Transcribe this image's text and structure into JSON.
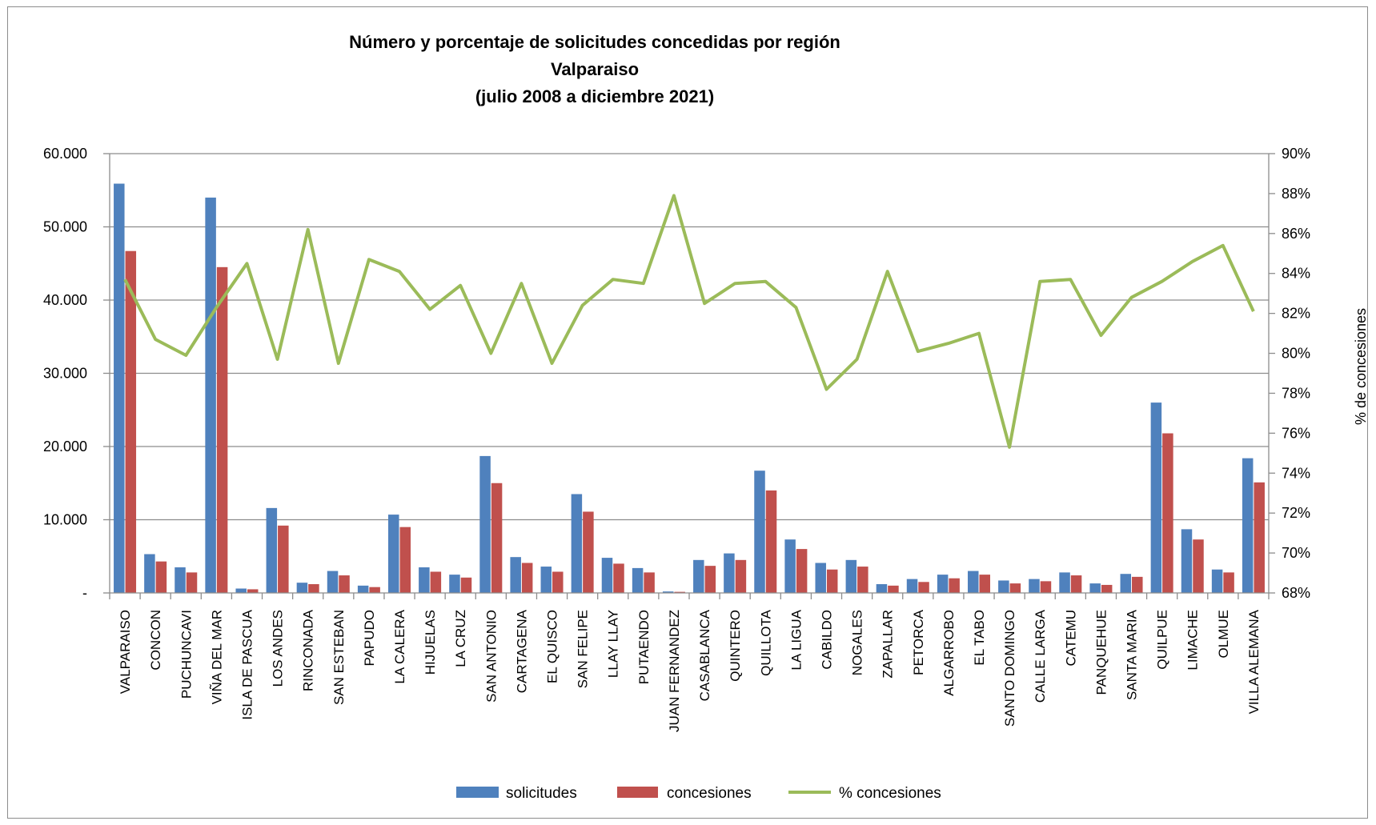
{
  "chart_data": {
    "type": "bar",
    "title": [
      "Número y porcentaje de solicitudes concedidas por región",
      "Valparaiso",
      "(julio 2008 a diciembre 2021)"
    ],
    "categories": [
      "VALPARAISO",
      "CONCON",
      "PUCHUNCAVI",
      "VIÑA DEL MAR",
      "ISLA DE PASCUA",
      "LOS ANDES",
      "RINCONADA",
      "SAN ESTEBAN",
      "PAPUDO",
      "LA CALERA",
      "HIJUELAS",
      "LA CRUZ",
      "SAN ANTONIO",
      "CARTAGENA",
      "EL QUISCO",
      "SAN FELIPE",
      "LLAY LLAY",
      "PUTAENDO",
      "JUAN FERNANDEZ",
      "CASABLANCA",
      "QUINTERO",
      "QUILLOTA",
      "LA LIGUA",
      "CABILDO",
      "NOGALES",
      "ZAPALLAR",
      "PETORCA",
      "ALGARROBO",
      "EL TABO",
      "SANTO DOMINGO",
      "CALLE LARGA",
      "CATEMU",
      "PANQUEHUE",
      "SANTA MARIA",
      "QUILPUE",
      "LIMACHE",
      "OLMUE",
      "VILLA ALEMANA"
    ],
    "series": [
      {
        "name": "solicitudes",
        "type": "bar",
        "axis": "left",
        "color": "#4F81BD",
        "values": [
          55900,
          5300,
          3500,
          54000,
          600,
          11600,
          1400,
          3000,
          1000,
          10700,
          3500,
          2500,
          18700,
          4900,
          3600,
          13500,
          4800,
          3400,
          200,
          4500,
          5400,
          16700,
          7300,
          4100,
          4500,
          1200,
          1900,
          2500,
          3000,
          1700,
          1900,
          2800,
          1300,
          2600,
          26000,
          8700,
          3200,
          18400
        ]
      },
      {
        "name": "concesiones",
        "type": "bar",
        "axis": "left",
        "color": "#C0504D",
        "values": [
          46700,
          4300,
          2800,
          44500,
          500,
          9200,
          1200,
          2400,
          800,
          9000,
          2900,
          2100,
          15000,
          4100,
          2900,
          11100,
          4000,
          2800,
          150,
          3700,
          4500,
          14000,
          6000,
          3200,
          3600,
          1000,
          1500,
          2000,
          2500,
          1300,
          1600,
          2400,
          1100,
          2200,
          21800,
          7300,
          2800,
          15100
        ]
      },
      {
        "name": "% concesiones",
        "type": "line",
        "axis": "right",
        "color": "#9BBB59",
        "values": [
          83.7,
          80.7,
          79.9,
          82.3,
          84.5,
          79.7,
          86.2,
          79.5,
          84.7,
          84.1,
          82.2,
          83.4,
          80.0,
          83.5,
          79.5,
          82.4,
          83.7,
          83.5,
          87.9,
          82.5,
          83.5,
          83.6,
          82.3,
          78.2,
          79.7,
          84.1,
          80.1,
          80.5,
          81.0,
          75.3,
          83.6,
          83.7,
          80.9,
          82.8,
          83.6,
          84.6,
          85.4,
          82.1
        ]
      }
    ],
    "y_left": {
      "min": 0,
      "max": 60000,
      "ticks": [
        "-",
        "10.000",
        "20.000",
        "30.000",
        "40.000",
        "50.000",
        "60.000"
      ]
    },
    "y_right": {
      "min": 68,
      "max": 90,
      "label": "% de concesiones",
      "ticks": [
        "68%",
        "70%",
        "72%",
        "74%",
        "76%",
        "78%",
        "80%",
        "82%",
        "84%",
        "86%",
        "88%",
        "90%"
      ]
    },
    "grid": true,
    "legend": {
      "position": "bottom",
      "items": [
        "solicitudes",
        "concesiones",
        "% concesiones"
      ]
    }
  }
}
